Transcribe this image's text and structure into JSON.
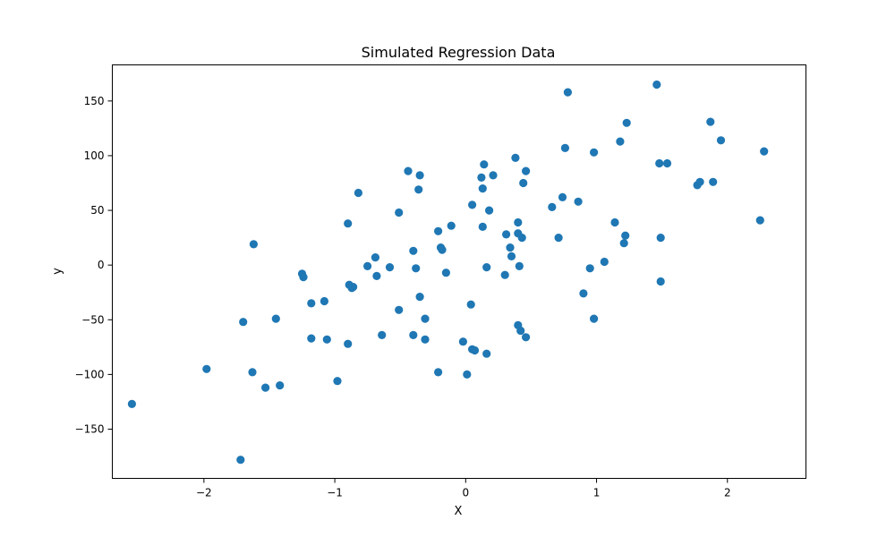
{
  "chart_data": {
    "type": "scatter",
    "title": "Simulated Regression Data",
    "xlabel": "X",
    "ylabel": "y",
    "xlim": [
      -2.7,
      2.6
    ],
    "ylim": [
      -195,
      183
    ],
    "xticks": [
      -2,
      -1,
      0,
      1,
      2
    ],
    "yticks": [
      -150,
      -100,
      -50,
      0,
      50,
      100,
      150
    ],
    "grid": false,
    "colors": {
      "points": "#1f77b4",
      "axes": "#000000",
      "background": "#ffffff"
    },
    "points": [
      [
        -2.55,
        -127
      ],
      [
        -1.98,
        -95
      ],
      [
        -1.72,
        -178
      ],
      [
        -1.7,
        -52
      ],
      [
        -1.62,
        19
      ],
      [
        -1.63,
        -98
      ],
      [
        -1.53,
        -112
      ],
      [
        -1.45,
        -49
      ],
      [
        -1.42,
        -110
      ],
      [
        -1.25,
        -8
      ],
      [
        -1.24,
        -11
      ],
      [
        -1.18,
        -35
      ],
      [
        -1.18,
        -67
      ],
      [
        -1.08,
        -33
      ],
      [
        -1.06,
        -68
      ],
      [
        -0.98,
        -106
      ],
      [
        -0.9,
        -72
      ],
      [
        -0.9,
        38
      ],
      [
        -0.89,
        -18
      ],
      [
        -0.87,
        -21
      ],
      [
        -0.86,
        -20
      ],
      [
        -0.82,
        66
      ],
      [
        -0.75,
        -1
      ],
      [
        -0.69,
        7
      ],
      [
        -0.68,
        -10
      ],
      [
        -0.64,
        -64
      ],
      [
        -0.58,
        -2
      ],
      [
        -0.51,
        48
      ],
      [
        -0.51,
        -41
      ],
      [
        -0.44,
        86
      ],
      [
        -0.4,
        -64
      ],
      [
        -0.4,
        13
      ],
      [
        -0.38,
        -3
      ],
      [
        -0.36,
        69
      ],
      [
        -0.35,
        82
      ],
      [
        -0.35,
        -29
      ],
      [
        -0.31,
        -68
      ],
      [
        -0.31,
        -49
      ],
      [
        -0.21,
        31
      ],
      [
        -0.21,
        -98
      ],
      [
        -0.19,
        16
      ],
      [
        -0.18,
        14
      ],
      [
        -0.15,
        -7
      ],
      [
        -0.11,
        36
      ],
      [
        -0.02,
        -70
      ],
      [
        0.01,
        -100
      ],
      [
        0.04,
        -36
      ],
      [
        0.05,
        55
      ],
      [
        0.05,
        -77
      ],
      [
        0.07,
        -78
      ],
      [
        0.12,
        80
      ],
      [
        0.13,
        70
      ],
      [
        0.13,
        35
      ],
      [
        0.14,
        92
      ],
      [
        0.16,
        -81
      ],
      [
        0.16,
        -2
      ],
      [
        0.18,
        50
      ],
      [
        0.21,
        82
      ],
      [
        0.3,
        -9
      ],
      [
        0.31,
        28
      ],
      [
        0.34,
        16
      ],
      [
        0.35,
        8
      ],
      [
        0.38,
        98
      ],
      [
        0.4,
        39
      ],
      [
        0.4,
        29
      ],
      [
        0.4,
        -55
      ],
      [
        0.41,
        -1
      ],
      [
        0.42,
        -60
      ],
      [
        0.43,
        25
      ],
      [
        0.44,
        75
      ],
      [
        0.46,
        86
      ],
      [
        0.46,
        -66
      ],
      [
        0.66,
        53
      ],
      [
        0.71,
        25
      ],
      [
        0.74,
        62
      ],
      [
        0.76,
        107
      ],
      [
        0.78,
        158
      ],
      [
        0.86,
        58
      ],
      [
        0.9,
        -26
      ],
      [
        0.95,
        -3
      ],
      [
        0.98,
        103
      ],
      [
        0.98,
        -49
      ],
      [
        1.06,
        3
      ],
      [
        1.14,
        39
      ],
      [
        1.18,
        113
      ],
      [
        1.21,
        20
      ],
      [
        1.22,
        27
      ],
      [
        1.23,
        130
      ],
      [
        1.46,
        165
      ],
      [
        1.48,
        93
      ],
      [
        1.49,
        25
      ],
      [
        1.49,
        -15
      ],
      [
        1.54,
        93
      ],
      [
        1.77,
        73
      ],
      [
        1.79,
        76
      ],
      [
        1.87,
        131
      ],
      [
        1.89,
        76
      ],
      [
        1.95,
        114
      ],
      [
        2.25,
        41
      ],
      [
        2.28,
        104
      ]
    ]
  }
}
